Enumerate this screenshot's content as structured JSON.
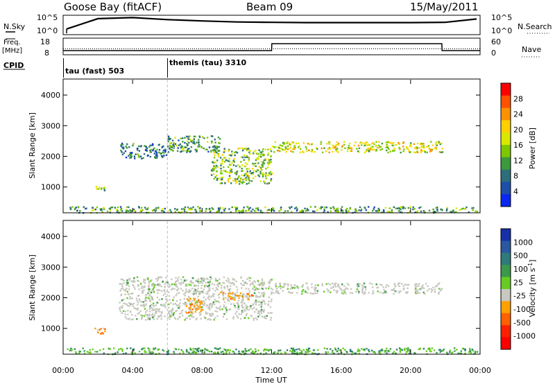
{
  "header": {
    "station": "Goose Bay (fitACF)",
    "beam": "Beam 09",
    "date": "15/May/2011"
  },
  "noise_panel": {
    "left_label": "N.Sky",
    "right_label": "N.Search",
    "left_top_tick": "10^5",
    "left_bottom_tick": "10^0",
    "right_top_tick": "10^5",
    "right_bottom_tick": "10^0"
  },
  "freq_panel": {
    "left_label_line1": "Freq.",
    "left_label_line2": "[MHz]",
    "right_label": "Nave",
    "left_ticks": [
      "18",
      "8"
    ],
    "right_ticks": [
      "60",
      "0"
    ]
  },
  "cpid": {
    "label": "CPID",
    "modes": [
      {
        "name": "tau (fast) 503",
        "start_hour": 0
      },
      {
        "name": "themis (tau) 3310",
        "start_hour": 6
      }
    ]
  },
  "power_colorbar": {
    "title": "Power [dB]",
    "ticks": [
      "28",
      "24",
      "20",
      "16",
      "12",
      "8",
      "4"
    ],
    "colors": [
      "#ff0000",
      "#ff5000",
      "#ff9000",
      "#ffd000",
      "#d8e800",
      "#7ec800",
      "#3c9a3c",
      "#2d6e7a",
      "#1e4ea8",
      "#0a28f0"
    ]
  },
  "velocity_colorbar": {
    "title": "Velocity [m s^-1]",
    "ticks": [
      "1000",
      "500",
      "100",
      "25",
      "-25",
      "-100",
      "-500",
      "-1000"
    ],
    "colors": [
      "#1530a8",
      "#2a58a0",
      "#2f7a7a",
      "#3a9a4a",
      "#66cc22",
      "#c8c8c0",
      "#ffa000",
      "#ff6000",
      "#ff2000",
      "#ff0000"
    ]
  },
  "time_axis": {
    "title": "Time UT",
    "ticks": [
      "00:00",
      "04:00",
      "08:00",
      "12:00",
      "16:00",
      "20:00",
      "00:00"
    ]
  },
  "chart_data": [
    {
      "type": "line",
      "series": [
        {
          "name": "N.Sky",
          "x_hours": [
            0.2,
            2,
            4,
            6,
            8,
            10,
            12,
            14,
            16,
            18,
            20,
            22,
            23.8
          ],
          "log10_noise": [
            1.3,
            4.4,
            4.7,
            4.1,
            3.7,
            3.4,
            3.3,
            3.2,
            3.2,
            3.2,
            3.2,
            3.3,
            4.3
          ]
        }
      ],
      "xlim": [
        0,
        24
      ],
      "ylim": [
        0,
        5
      ]
    },
    {
      "type": "line",
      "series": [
        {
          "name": "Freq.",
          "x_hours": [
            0,
            12,
            12.01,
            21.8,
            21.81,
            24
          ],
          "values": [
            10,
            10,
            15,
            15,
            10,
            10
          ]
        },
        {
          "name": "Nave",
          "x_hours": [
            0,
            24
          ],
          "values": [
            20,
            20
          ]
        }
      ],
      "xlim": [
        0,
        24
      ]
    },
    {
      "type": "heatmap",
      "title": "Power [dB]",
      "xlabel": "Time UT",
      "ylabel": "Slant Range [km]",
      "xlim": [
        0,
        24
      ],
      "ylim": [
        180,
        4500
      ],
      "yticks": [
        1000,
        2000,
        3000,
        4000
      ],
      "xticks_hours": [
        0,
        4,
        8,
        12,
        16,
        20,
        24
      ],
      "colorbar_range": [
        0,
        30
      ],
      "backscatter_regions": [
        {
          "t": [
            3.2,
            6.0
          ],
          "range_km": [
            1950,
            2450
          ],
          "power_db": 8
        },
        {
          "t": [
            6.0,
            9.0
          ],
          "range_km": [
            2150,
            2700
          ],
          "power_db": 10
        },
        {
          "t": [
            8.5,
            12.0
          ],
          "range_km": [
            1100,
            2300
          ],
          "power_db": 12
        },
        {
          "t": [
            12.0,
            21.8
          ],
          "range_km": [
            2150,
            2500
          ],
          "power_db": 18
        },
        {
          "t": [
            1.8,
            2.5
          ],
          "range_km": [
            850,
            1050
          ],
          "power_db": 14
        },
        {
          "t": [
            0.2,
            23.8
          ],
          "range_km": [
            180,
            380
          ],
          "power_db": 10
        }
      ]
    },
    {
      "type": "heatmap",
      "title": "Velocity [m s^-1]",
      "xlabel": "Time UT",
      "ylabel": "Slant Range [km]",
      "xlim": [
        0,
        24
      ],
      "ylim": [
        180,
        4500
      ],
      "yticks": [
        1000,
        2000,
        3000,
        4000
      ],
      "xticks_hours": [
        0,
        4,
        8,
        12,
        16,
        20,
        24
      ],
      "backscatter_regions": [
        {
          "t": [
            3.2,
            12.0
          ],
          "range_km": [
            1300,
            2700
          ],
          "velocity_ms": 0
        },
        {
          "t": [
            12.0,
            21.8
          ],
          "range_km": [
            2150,
            2500
          ],
          "velocity_ms": 0
        },
        {
          "t": [
            9.0,
            11.0
          ],
          "range_km": [
            1950,
            2200
          ],
          "velocity_ms": -150
        },
        {
          "t": [
            7.0,
            8.0
          ],
          "range_km": [
            1500,
            2000
          ],
          "velocity_ms": -200
        },
        {
          "t": [
            1.8,
            2.5
          ],
          "range_km": [
            850,
            1050
          ],
          "velocity_ms": -150
        },
        {
          "t": [
            0.2,
            23.8
          ],
          "range_km": [
            180,
            380
          ],
          "velocity_ms": 50
        }
      ]
    }
  ]
}
